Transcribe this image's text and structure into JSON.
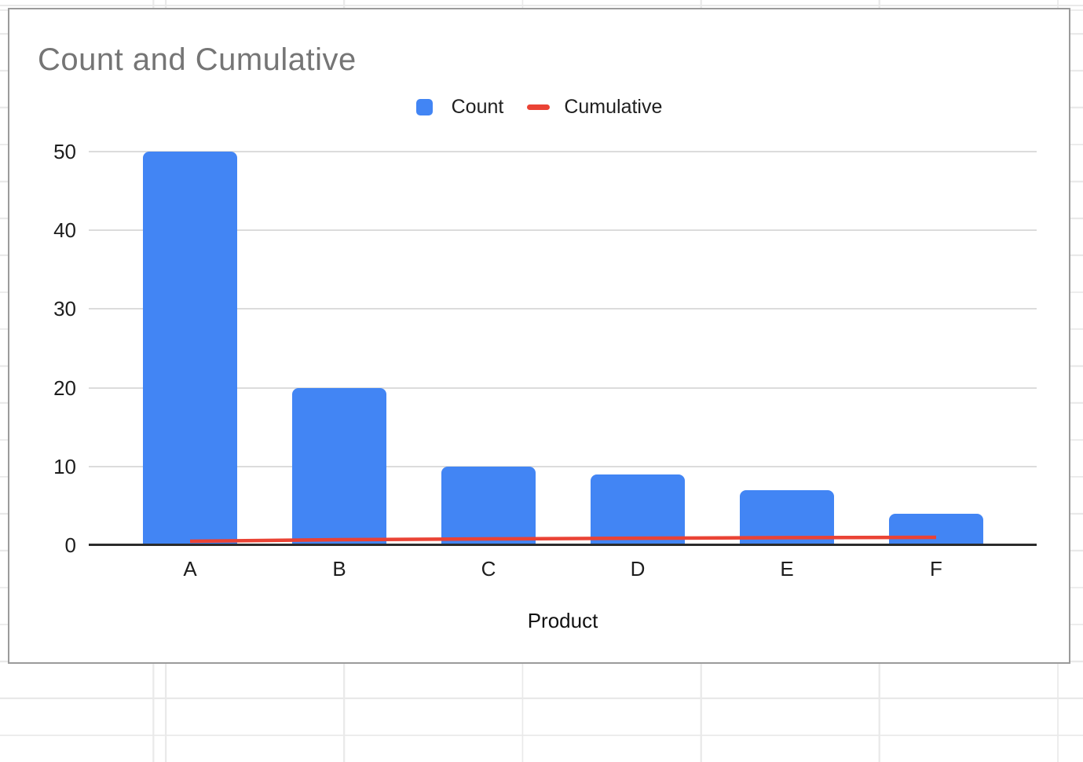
{
  "chart_data": {
    "type": "combo-bar-line",
    "title": "Count and Cumulative",
    "categories": [
      "A",
      "B",
      "C",
      "D",
      "E",
      "F"
    ],
    "series": [
      {
        "name": "Count",
        "type": "bar",
        "color": "#4285f4",
        "values": [
          50,
          20,
          10,
          9,
          7,
          4
        ]
      },
      {
        "name": "Cumulative",
        "type": "line",
        "color": "#ea4335",
        "values": [
          0.5,
          0.7,
          0.8,
          0.89,
          0.96,
          1.0
        ]
      }
    ],
    "xlabel": "Product",
    "ylabel": "",
    "y_ticks": [
      0,
      10,
      20,
      30,
      40,
      50
    ],
    "ylim": [
      0,
      50
    ],
    "grid": true,
    "legend_position": "top-center"
  },
  "style": {
    "title_color": "#757575",
    "axis_label_color": "#1d1d1d",
    "gridline_color": "#dcdcdc",
    "axis_line_color": "#2b2b2b",
    "card_border_color": "#9b9b9b",
    "sheet_gridline_color": "#e9e9e9"
  }
}
